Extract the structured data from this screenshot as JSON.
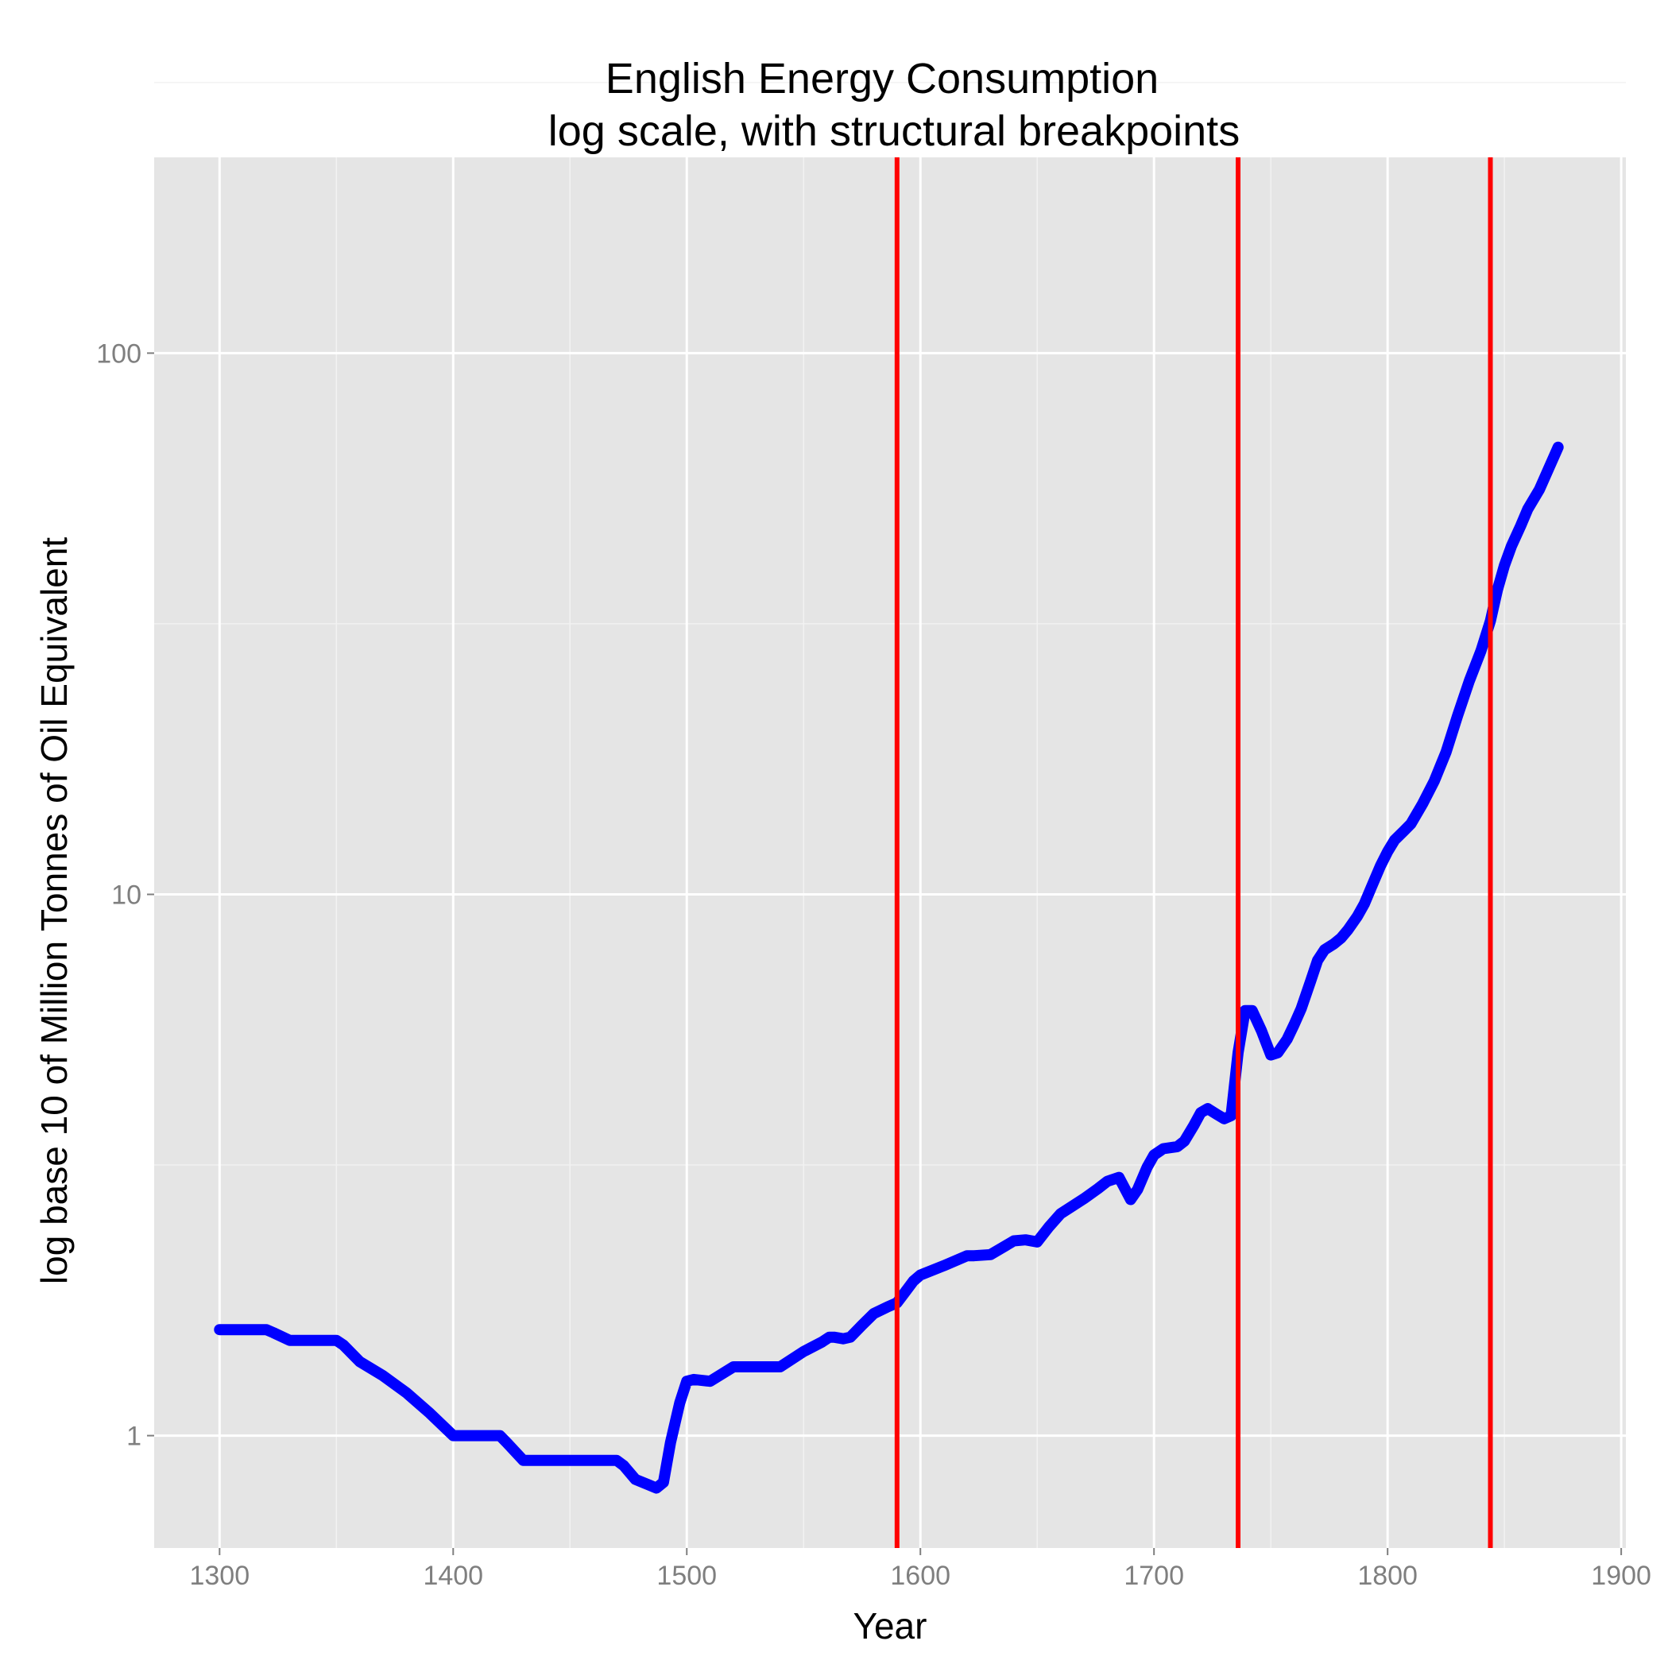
{
  "chart_data": {
    "type": "line",
    "title": "English Energy Consumption",
    "subtitle": "log scale, with structural breakpoints",
    "xlabel": "Year",
    "ylabel": "log base 10 of Million Tonnes of Oil Equivalent",
    "xlim": [
      1272,
      1902
    ],
    "ylim": [
      0.62,
      230
    ],
    "y_scale": "log10",
    "grid": true,
    "panel_background": "#e5e5e5",
    "grid_color": "#ffffff",
    "x_ticks": [
      {
        "value": 1300,
        "label": "1300"
      },
      {
        "value": 1400,
        "label": "1400"
      },
      {
        "value": 1500,
        "label": "1500"
      },
      {
        "value": 1600,
        "label": "1600"
      },
      {
        "value": 1700,
        "label": "1700"
      },
      {
        "value": 1800,
        "label": "1800"
      },
      {
        "value": 1900,
        "label": "1900"
      }
    ],
    "y_ticks": [
      {
        "value": 1,
        "label": "1"
      },
      {
        "value": 10,
        "label": "10"
      },
      {
        "value": 100,
        "label": "100"
      }
    ],
    "breakpoints": {
      "color": "#ff0000",
      "x": [
        1590,
        1736,
        1844
      ]
    },
    "series": [
      {
        "color": "#0000ff",
        "x": [
          1300,
          1320,
          1323,
          1330,
          1350,
          1353,
          1360,
          1370,
          1380,
          1390,
          1400,
          1420,
          1423,
          1430,
          1470,
          1473,
          1478,
          1484,
          1487,
          1490,
          1493,
          1497,
          1500,
          1503,
          1510,
          1520,
          1530,
          1540,
          1550,
          1558,
          1561,
          1563,
          1567,
          1570,
          1575,
          1580,
          1586,
          1590,
          1593,
          1597,
          1600,
          1610,
          1620,
          1623,
          1630,
          1640,
          1645,
          1650,
          1655,
          1660,
          1670,
          1676,
          1680,
          1685,
          1690,
          1693,
          1697,
          1700,
          1704,
          1710,
          1713,
          1717,
          1720,
          1723,
          1727,
          1730,
          1733,
          1736,
          1739,
          1742,
          1746,
          1750,
          1753,
          1757,
          1760,
          1763,
          1767,
          1770,
          1773,
          1777,
          1780,
          1783,
          1787,
          1790,
          1793,
          1797,
          1800,
          1803,
          1807,
          1810,
          1815,
          1820,
          1825,
          1830,
          1835,
          1840,
          1844,
          1847,
          1850,
          1853,
          1857,
          1860,
          1865,
          1873
        ],
        "y": [
          1.57,
          1.57,
          1.55,
          1.5,
          1.5,
          1.47,
          1.37,
          1.29,
          1.2,
          1.1,
          1.0,
          1.0,
          0.97,
          0.9,
          0.9,
          0.88,
          0.83,
          0.81,
          0.8,
          0.82,
          0.97,
          1.15,
          1.26,
          1.27,
          1.26,
          1.34,
          1.34,
          1.34,
          1.43,
          1.49,
          1.52,
          1.52,
          1.51,
          1.52,
          1.6,
          1.68,
          1.73,
          1.76,
          1.83,
          1.93,
          1.98,
          2.06,
          2.15,
          2.15,
          2.16,
          2.29,
          2.3,
          2.28,
          2.43,
          2.57,
          2.74,
          2.86,
          2.95,
          3.0,
          2.73,
          2.85,
          3.13,
          3.3,
          3.39,
          3.42,
          3.5,
          3.74,
          3.95,
          4.02,
          3.92,
          3.85,
          3.9,
          5.1,
          6.1,
          6.1,
          5.6,
          5.05,
          5.1,
          5.4,
          5.75,
          6.15,
          6.9,
          7.55,
          7.9,
          8.1,
          8.3,
          8.6,
          9.1,
          9.6,
          10.3,
          11.3,
          12.0,
          12.6,
          13.1,
          13.5,
          14.7,
          16.2,
          18.3,
          21.4,
          24.8,
          28.2,
          32.0,
          36.5,
          40.5,
          44.0,
          48.0,
          51.5,
          56.0,
          67.0
        ]
      }
    ]
  }
}
